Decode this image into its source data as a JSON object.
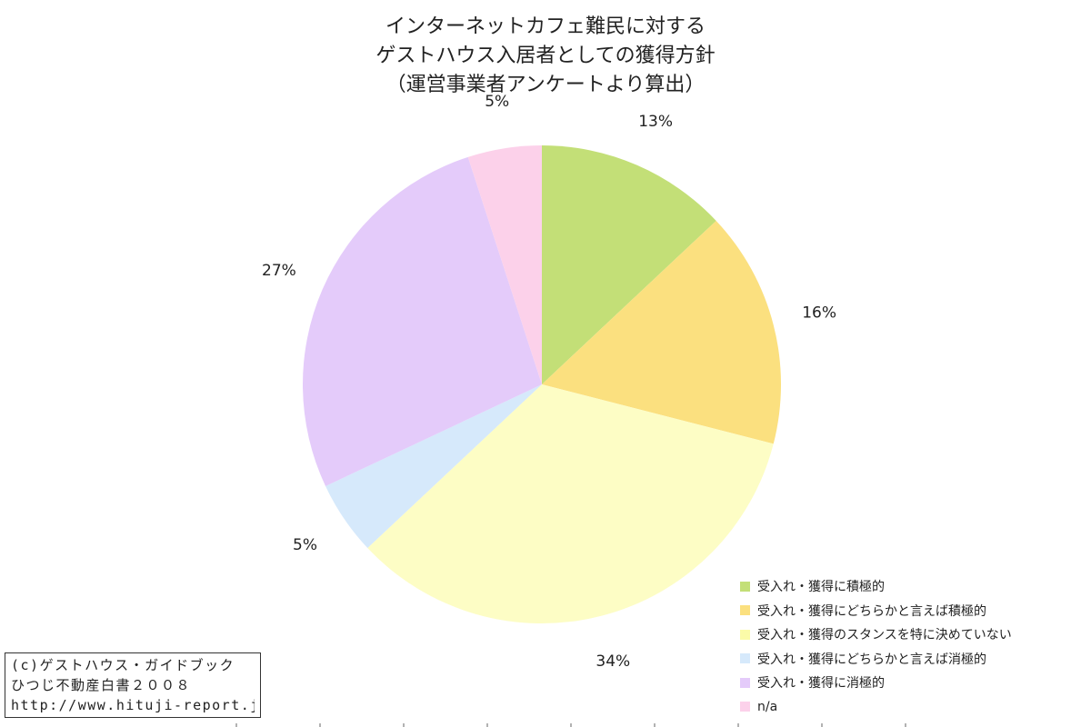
{
  "chart_data": {
    "type": "pie",
    "title": [
      "インターネットカフェ難民に対する",
      "ゲストハウス入居者としての獲得方針",
      "（運営事業者アンケートより算出）"
    ],
    "start_angle_deg": 0,
    "direction": "clockwise",
    "legend_position": "bottom-right",
    "slices": [
      {
        "label": "受入れ・獲得に積極的",
        "value": 13,
        "display": "13%",
        "color": "#c3df77"
      },
      {
        "label": "受入れ・獲得にどちらかと言えば積極的",
        "value": 16,
        "display": "16%",
        "color": "#fbe07f"
      },
      {
        "label": "受入れ・獲得のスタンスを特に決めていない",
        "value": 34,
        "display": "34%",
        "color": "#fdfdc5"
      },
      {
        "label": "受入れ・獲得にどちらかと言えば消極的",
        "value": 5,
        "display": "5%",
        "color": "#d6e9fb"
      },
      {
        "label": "受入れ・獲得に消極的",
        "value": 27,
        "display": "27%",
        "color": "#e4cbfa"
      },
      {
        "label": "n/a",
        "value": 5,
        "display": "5%",
        "color": "#fcd1ea"
      }
    ]
  },
  "credit": {
    "line1": "(c)ゲストハウス・ガイドブック",
    "line2": "ひつじ不動産白書２００８",
    "line3": "http://www.hituji-report.jp/"
  }
}
